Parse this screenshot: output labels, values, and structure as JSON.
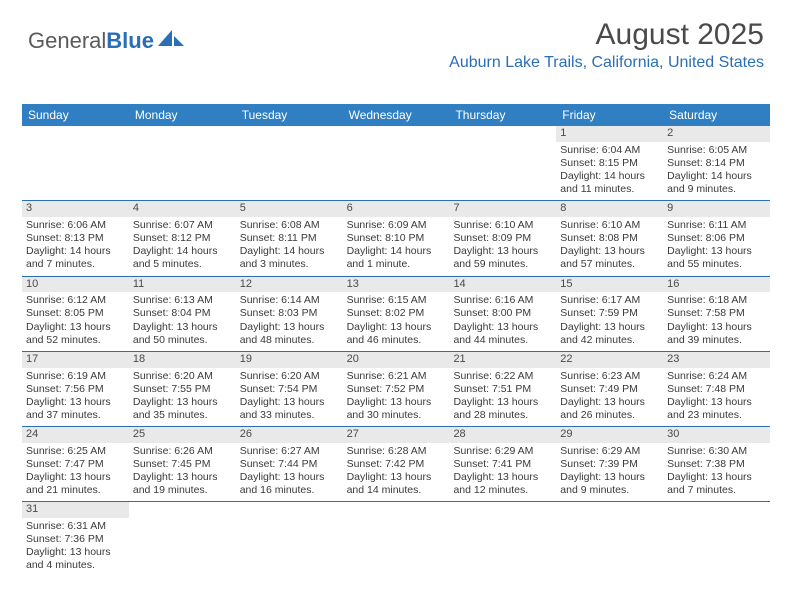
{
  "brand": {
    "part1": "General",
    "part2": "Blue"
  },
  "title": "August 2025",
  "location": "Auburn Lake Trails, California, United States",
  "colors": {
    "header_bar": "#2f7fc2",
    "accent": "#2a6fb5",
    "num_bg": "#e9e9e9",
    "text": "#3a3a3a",
    "background": "#ffffff"
  },
  "day_names": [
    "Sunday",
    "Monday",
    "Tuesday",
    "Wednesday",
    "Thursday",
    "Friday",
    "Saturday"
  ],
  "weeks": [
    [
      {
        "n": "",
        "lines": []
      },
      {
        "n": "",
        "lines": []
      },
      {
        "n": "",
        "lines": []
      },
      {
        "n": "",
        "lines": []
      },
      {
        "n": "",
        "lines": []
      },
      {
        "n": "1",
        "lines": [
          "Sunrise: 6:04 AM",
          "Sunset: 8:15 PM",
          "Daylight: 14 hours and 11 minutes."
        ]
      },
      {
        "n": "2",
        "lines": [
          "Sunrise: 6:05 AM",
          "Sunset: 8:14 PM",
          "Daylight: 14 hours and 9 minutes."
        ]
      }
    ],
    [
      {
        "n": "3",
        "lines": [
          "Sunrise: 6:06 AM",
          "Sunset: 8:13 PM",
          "Daylight: 14 hours and 7 minutes."
        ]
      },
      {
        "n": "4",
        "lines": [
          "Sunrise: 6:07 AM",
          "Sunset: 8:12 PM",
          "Daylight: 14 hours and 5 minutes."
        ]
      },
      {
        "n": "5",
        "lines": [
          "Sunrise: 6:08 AM",
          "Sunset: 8:11 PM",
          "Daylight: 14 hours and 3 minutes."
        ]
      },
      {
        "n": "6",
        "lines": [
          "Sunrise: 6:09 AM",
          "Sunset: 8:10 PM",
          "Daylight: 14 hours and 1 minute."
        ]
      },
      {
        "n": "7",
        "lines": [
          "Sunrise: 6:10 AM",
          "Sunset: 8:09 PM",
          "Daylight: 13 hours and 59 minutes."
        ]
      },
      {
        "n": "8",
        "lines": [
          "Sunrise: 6:10 AM",
          "Sunset: 8:08 PM",
          "Daylight: 13 hours and 57 minutes."
        ]
      },
      {
        "n": "9",
        "lines": [
          "Sunrise: 6:11 AM",
          "Sunset: 8:06 PM",
          "Daylight: 13 hours and 55 minutes."
        ]
      }
    ],
    [
      {
        "n": "10",
        "lines": [
          "Sunrise: 6:12 AM",
          "Sunset: 8:05 PM",
          "Daylight: 13 hours and 52 minutes."
        ]
      },
      {
        "n": "11",
        "lines": [
          "Sunrise: 6:13 AM",
          "Sunset: 8:04 PM",
          "Daylight: 13 hours and 50 minutes."
        ]
      },
      {
        "n": "12",
        "lines": [
          "Sunrise: 6:14 AM",
          "Sunset: 8:03 PM",
          "Daylight: 13 hours and 48 minutes."
        ]
      },
      {
        "n": "13",
        "lines": [
          "Sunrise: 6:15 AM",
          "Sunset: 8:02 PM",
          "Daylight: 13 hours and 46 minutes."
        ]
      },
      {
        "n": "14",
        "lines": [
          "Sunrise: 6:16 AM",
          "Sunset: 8:00 PM",
          "Daylight: 13 hours and 44 minutes."
        ]
      },
      {
        "n": "15",
        "lines": [
          "Sunrise: 6:17 AM",
          "Sunset: 7:59 PM",
          "Daylight: 13 hours and 42 minutes."
        ]
      },
      {
        "n": "16",
        "lines": [
          "Sunrise: 6:18 AM",
          "Sunset: 7:58 PM",
          "Daylight: 13 hours and 39 minutes."
        ]
      }
    ],
    [
      {
        "n": "17",
        "lines": [
          "Sunrise: 6:19 AM",
          "Sunset: 7:56 PM",
          "Daylight: 13 hours and 37 minutes."
        ]
      },
      {
        "n": "18",
        "lines": [
          "Sunrise: 6:20 AM",
          "Sunset: 7:55 PM",
          "Daylight: 13 hours and 35 minutes."
        ]
      },
      {
        "n": "19",
        "lines": [
          "Sunrise: 6:20 AM",
          "Sunset: 7:54 PM",
          "Daylight: 13 hours and 33 minutes."
        ]
      },
      {
        "n": "20",
        "lines": [
          "Sunrise: 6:21 AM",
          "Sunset: 7:52 PM",
          "Daylight: 13 hours and 30 minutes."
        ]
      },
      {
        "n": "21",
        "lines": [
          "Sunrise: 6:22 AM",
          "Sunset: 7:51 PM",
          "Daylight: 13 hours and 28 minutes."
        ]
      },
      {
        "n": "22",
        "lines": [
          "Sunrise: 6:23 AM",
          "Sunset: 7:49 PM",
          "Daylight: 13 hours and 26 minutes."
        ]
      },
      {
        "n": "23",
        "lines": [
          "Sunrise: 6:24 AM",
          "Sunset: 7:48 PM",
          "Daylight: 13 hours and 23 minutes."
        ]
      }
    ],
    [
      {
        "n": "24",
        "lines": [
          "Sunrise: 6:25 AM",
          "Sunset: 7:47 PM",
          "Daylight: 13 hours and 21 minutes."
        ]
      },
      {
        "n": "25",
        "lines": [
          "Sunrise: 6:26 AM",
          "Sunset: 7:45 PM",
          "Daylight: 13 hours and 19 minutes."
        ]
      },
      {
        "n": "26",
        "lines": [
          "Sunrise: 6:27 AM",
          "Sunset: 7:44 PM",
          "Daylight: 13 hours and 16 minutes."
        ]
      },
      {
        "n": "27",
        "lines": [
          "Sunrise: 6:28 AM",
          "Sunset: 7:42 PM",
          "Daylight: 13 hours and 14 minutes."
        ]
      },
      {
        "n": "28",
        "lines": [
          "Sunrise: 6:29 AM",
          "Sunset: 7:41 PM",
          "Daylight: 13 hours and 12 minutes."
        ]
      },
      {
        "n": "29",
        "lines": [
          "Sunrise: 6:29 AM",
          "Sunset: 7:39 PM",
          "Daylight: 13 hours and 9 minutes."
        ]
      },
      {
        "n": "30",
        "lines": [
          "Sunrise: 6:30 AM",
          "Sunset: 7:38 PM",
          "Daylight: 13 hours and 7 minutes."
        ]
      }
    ],
    [
      {
        "n": "31",
        "lines": [
          "Sunrise: 6:31 AM",
          "Sunset: 7:36 PM",
          "Daylight: 13 hours and 4 minutes."
        ]
      },
      {
        "n": "",
        "lines": []
      },
      {
        "n": "",
        "lines": []
      },
      {
        "n": "",
        "lines": []
      },
      {
        "n": "",
        "lines": []
      },
      {
        "n": "",
        "lines": []
      },
      {
        "n": "",
        "lines": []
      }
    ]
  ]
}
